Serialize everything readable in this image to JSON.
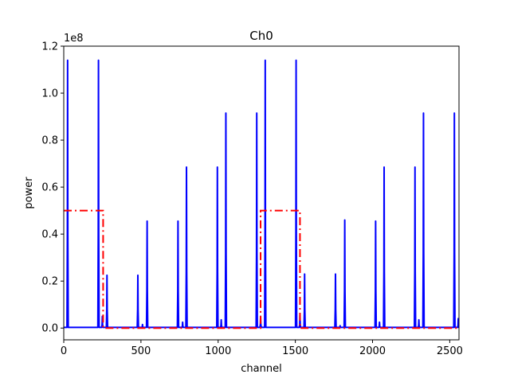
{
  "chart_data": {
    "type": "line",
    "title": "Ch0",
    "xlabel": "channel",
    "ylabel": "power",
    "y_offset_label": "1e8",
    "xlim": [
      0,
      2560
    ],
    "ylim": [
      -0.05,
      1.2
    ],
    "y_scale_note": "values in units of 1e8",
    "xticks": [
      0,
      500,
      1000,
      1500,
      2000,
      2500
    ],
    "yticks": [
      0.0,
      0.2,
      0.4,
      0.6,
      0.8,
      1.0,
      1.2
    ],
    "xtick_labels": [
      "0",
      "500",
      "1000",
      "1500",
      "2000",
      "2500"
    ],
    "ytick_labels": [
      "0.0",
      "0.2",
      "0.4",
      "0.6",
      "0.8",
      "1.0",
      "1.2"
    ],
    "grid": false,
    "series": [
      {
        "color": "#0000ff",
        "style": "solid",
        "baseline": 0.003,
        "peaks": [
          {
            "x": 25,
            "y": 1.14
          },
          {
            "x": 225,
            "y": 1.14
          },
          {
            "x": 250,
            "y": 0.05
          },
          {
            "x": 280,
            "y": 0.225
          },
          {
            "x": 480,
            "y": 0.225
          },
          {
            "x": 510,
            "y": 0.015
          },
          {
            "x": 540,
            "y": 0.455
          },
          {
            "x": 740,
            "y": 0.455
          },
          {
            "x": 770,
            "y": 0.025
          },
          {
            "x": 795,
            "y": 0.685
          },
          {
            "x": 995,
            "y": 0.685
          },
          {
            "x": 1020,
            "y": 0.035
          },
          {
            "x": 1050,
            "y": 0.915
          },
          {
            "x": 1250,
            "y": 0.915
          },
          {
            "x": 1275,
            "y": 0.05
          },
          {
            "x": 1305,
            "y": 1.14
          },
          {
            "x": 1505,
            "y": 1.14
          },
          {
            "x": 1530,
            "y": 0.055
          },
          {
            "x": 1560,
            "y": 0.23
          },
          {
            "x": 1760,
            "y": 0.23
          },
          {
            "x": 1790,
            "y": 0.01
          },
          {
            "x": 1820,
            "y": 0.46
          },
          {
            "x": 2020,
            "y": 0.455
          },
          {
            "x": 2045,
            "y": 0.025
          },
          {
            "x": 2075,
            "y": 0.685
          },
          {
            "x": 2275,
            "y": 0.685
          },
          {
            "x": 2300,
            "y": 0.035
          },
          {
            "x": 2330,
            "y": 0.915
          },
          {
            "x": 2530,
            "y": 0.915
          },
          {
            "x": 2555,
            "y": 0.04
          }
        ]
      },
      {
        "color": "#ff0000",
        "style": "dashdot",
        "points": [
          [
            0,
            0.5
          ],
          [
            255,
            0.5
          ],
          [
            255,
            0.0
          ],
          [
            1275,
            0.0
          ],
          [
            1275,
            0.5
          ],
          [
            1530,
            0.5
          ],
          [
            1530,
            0.0
          ],
          [
            2560,
            0.0
          ]
        ]
      }
    ]
  }
}
